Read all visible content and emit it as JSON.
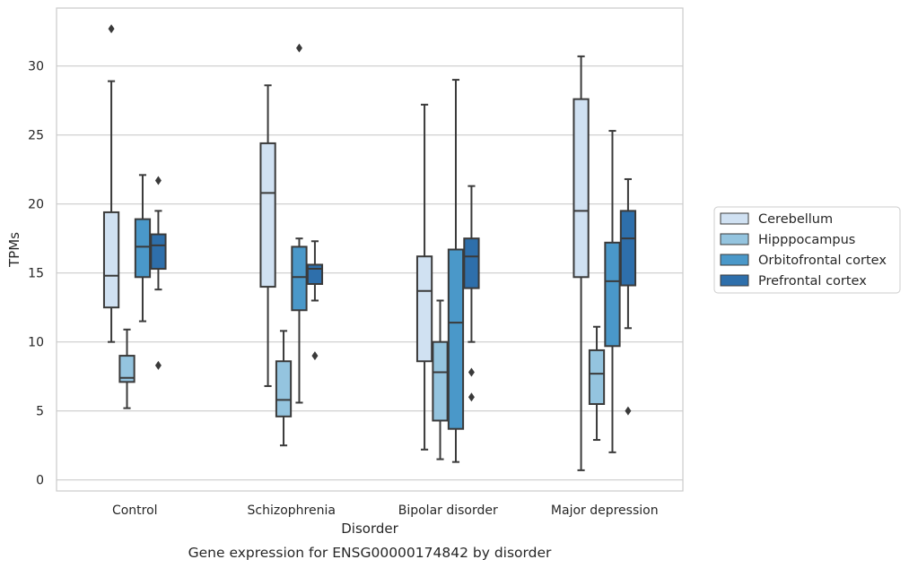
{
  "chart_data": {
    "type": "boxplot",
    "title": "",
    "caption": "Gene expression for ENSG00000174842 by disorder",
    "xlabel": "Disorder",
    "ylabel": "TPMs",
    "ylim": [
      -0.8,
      34.2
    ],
    "yticks": [
      0,
      5,
      10,
      15,
      20,
      25,
      30
    ],
    "grid": "horizontal",
    "legend_position": "right",
    "categories": [
      "Control",
      "Schizophrenia",
      "Bipolar disorder",
      "Major depression"
    ],
    "series": [
      {
        "name": "Cerebellum",
        "color": "#d0e1f2",
        "boxes": [
          {
            "whislo": 10.0,
            "q1": 12.5,
            "med": 14.8,
            "q3": 19.4,
            "whishi": 28.9,
            "fliers": [
              32.7
            ]
          },
          {
            "whislo": 6.8,
            "q1": 14.0,
            "med": 20.8,
            "q3": 24.4,
            "whishi": 28.6,
            "fliers": []
          },
          {
            "whislo": 2.2,
            "q1": 8.6,
            "med": 13.7,
            "q3": 16.2,
            "whishi": 27.2,
            "fliers": []
          },
          {
            "whislo": 0.7,
            "q1": 14.7,
            "med": 19.5,
            "q3": 27.6,
            "whishi": 30.7,
            "fliers": []
          }
        ]
      },
      {
        "name": "Hipppocampus",
        "color": "#94c4df",
        "boxes": [
          {
            "whislo": 5.2,
            "q1": 7.1,
            "med": 7.4,
            "q3": 9.0,
            "whishi": 10.9,
            "fliers": []
          },
          {
            "whislo": 2.5,
            "q1": 4.6,
            "med": 5.8,
            "q3": 8.6,
            "whishi": 10.8,
            "fliers": []
          },
          {
            "whislo": 1.5,
            "q1": 4.3,
            "med": 7.8,
            "q3": 10.0,
            "whishi": 13.0,
            "fliers": []
          },
          {
            "whislo": 2.9,
            "q1": 5.5,
            "med": 7.7,
            "q3": 9.4,
            "whishi": 11.1,
            "fliers": []
          }
        ]
      },
      {
        "name": "Orbitofrontal cortex",
        "color": "#4a98c9",
        "boxes": [
          {
            "whislo": 11.5,
            "q1": 14.7,
            "med": 16.9,
            "q3": 18.9,
            "whishi": 22.1,
            "fliers": []
          },
          {
            "whislo": 5.6,
            "q1": 12.3,
            "med": 14.7,
            "q3": 16.9,
            "whishi": 17.5,
            "fliers": [
              31.3
            ]
          },
          {
            "whislo": 1.3,
            "q1": 3.7,
            "med": 11.4,
            "q3": 16.7,
            "whishi": 29.0,
            "fliers": []
          },
          {
            "whislo": 2.0,
            "q1": 9.7,
            "med": 14.4,
            "q3": 17.2,
            "whishi": 25.3,
            "fliers": []
          }
        ]
      },
      {
        "name": "Prefrontal cortex",
        "color": "#2e6fab",
        "boxes": [
          {
            "whislo": 13.8,
            "q1": 15.3,
            "med": 17.0,
            "q3": 17.8,
            "whishi": 19.5,
            "fliers": [
              21.7,
              8.3
            ]
          },
          {
            "whislo": 13.0,
            "q1": 14.2,
            "med": 15.3,
            "q3": 15.6,
            "whishi": 17.3,
            "fliers": [
              9.0
            ]
          },
          {
            "whislo": 10.0,
            "q1": 13.9,
            "med": 16.2,
            "q3": 17.5,
            "whishi": 21.3,
            "fliers": [
              7.8,
              6.0
            ]
          },
          {
            "whislo": 11.0,
            "q1": 14.1,
            "med": 17.5,
            "q3": 19.5,
            "whishi": 21.8,
            "fliers": [
              5.0
            ]
          }
        ]
      }
    ]
  }
}
